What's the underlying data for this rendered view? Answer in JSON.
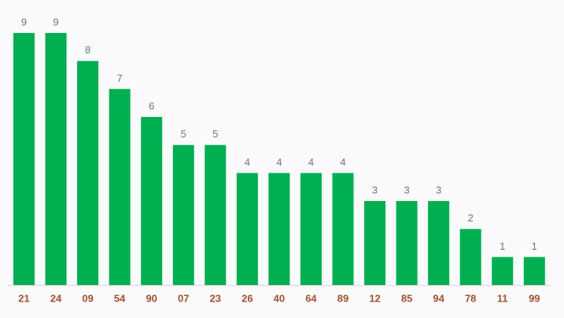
{
  "chart_data": {
    "type": "bar",
    "categories": [
      "21",
      "24",
      "09",
      "54",
      "90",
      "07",
      "23",
      "26",
      "40",
      "64",
      "89",
      "12",
      "85",
      "94",
      "78",
      "11",
      "99"
    ],
    "values": [
      9,
      9,
      8,
      7,
      6,
      5,
      5,
      4,
      4,
      4,
      4,
      3,
      3,
      3,
      2,
      1,
      1
    ],
    "color": "#00b050"
  }
}
